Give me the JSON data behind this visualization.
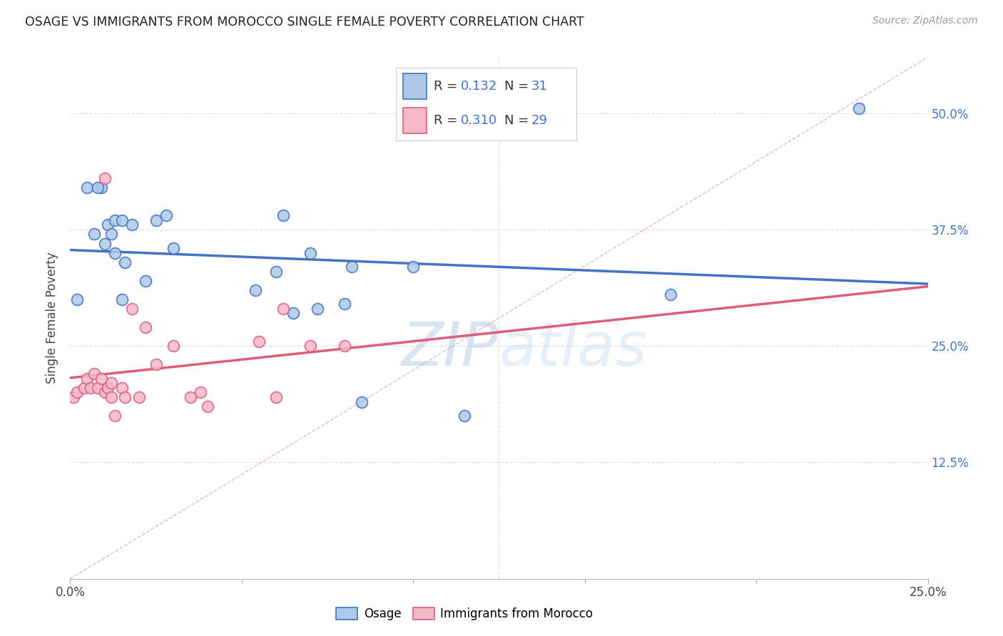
{
  "title": "OSAGE VS IMMIGRANTS FROM MOROCCO SINGLE FEMALE POVERTY CORRELATION CHART",
  "source": "Source: ZipAtlas.com",
  "ylabel": "Single Female Poverty",
  "xlim": [
    0.0,
    0.25
  ],
  "ylim": [
    0.0,
    0.56
  ],
  "r_osage": "0.132",
  "n_osage": "31",
  "r_morocco": "0.310",
  "n_morocco": "29",
  "osage_face_color": "#aec9e8",
  "osage_edge_color": "#4472c4",
  "morocco_face_color": "#f5b8c8",
  "morocco_edge_color": "#d95f7f",
  "osage_line_color": "#4472c4",
  "morocco_line_color": "#e05c7a",
  "diagonal_color": "#d8a0a8",
  "grid_color": "#e0e0e0",
  "right_tick_color": "#4472c4",
  "watermark_color": "#c8daf0",
  "background": "#ffffff",
  "osage_x": [
    0.002,
    0.005,
    0.007,
    0.009,
    0.01,
    0.011,
    0.012,
    0.013,
    0.013,
    0.015,
    0.015,
    0.016,
    0.018,
    0.022,
    0.025,
    0.028,
    0.03,
    0.054,
    0.06,
    0.062,
    0.065,
    0.07,
    0.072,
    0.08,
    0.082,
    0.085,
    0.1,
    0.115,
    0.175,
    0.23,
    0.008
  ],
  "osage_y": [
    0.3,
    0.42,
    0.37,
    0.42,
    0.36,
    0.38,
    0.37,
    0.385,
    0.35,
    0.385,
    0.3,
    0.34,
    0.38,
    0.32,
    0.385,
    0.39,
    0.355,
    0.31,
    0.33,
    0.39,
    0.285,
    0.35,
    0.29,
    0.295,
    0.335,
    0.19,
    0.335,
    0.175,
    0.305,
    0.505,
    0.42
  ],
  "morocco_x": [
    0.001,
    0.002,
    0.004,
    0.005,
    0.006,
    0.007,
    0.008,
    0.009,
    0.01,
    0.011,
    0.012,
    0.012,
    0.013,
    0.015,
    0.016,
    0.018,
    0.02,
    0.022,
    0.025,
    0.03,
    0.035,
    0.038,
    0.04,
    0.055,
    0.06,
    0.062,
    0.07,
    0.08,
    0.01
  ],
  "morocco_y": [
    0.195,
    0.2,
    0.205,
    0.215,
    0.205,
    0.22,
    0.205,
    0.215,
    0.2,
    0.205,
    0.195,
    0.21,
    0.175,
    0.205,
    0.195,
    0.29,
    0.195,
    0.27,
    0.23,
    0.25,
    0.195,
    0.2,
    0.185,
    0.255,
    0.195,
    0.29,
    0.25,
    0.25,
    0.43
  ],
  "ytick_positions": [
    0.125,
    0.25,
    0.375,
    0.5
  ],
  "ytick_labels": [
    "12.5%",
    "25.0%",
    "37.5%",
    "50.0%"
  ],
  "xtick_positions": [
    0.0,
    0.05,
    0.1,
    0.15,
    0.2,
    0.25
  ],
  "xtick_labels": [
    "0.0%",
    "",
    "",
    "",
    "",
    "25.0%"
  ]
}
